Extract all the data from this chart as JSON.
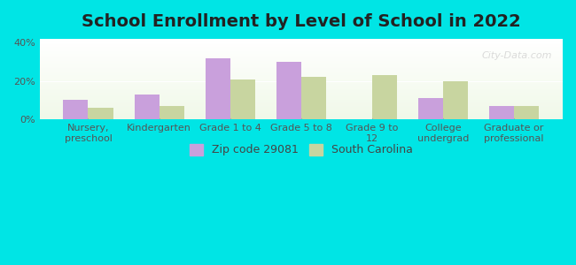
{
  "title": "School Enrollment by Level of School in 2022",
  "categories": [
    "Nursery,\npreschool",
    "Kindergarten",
    "Grade 1 to 4",
    "Grade 5 to 8",
    "Grade 9 to\n12",
    "College\nundergrad",
    "Graduate or\nprofessional"
  ],
  "zip_values": [
    10,
    13,
    32,
    30,
    0,
    11,
    7
  ],
  "sc_values": [
    6,
    7,
    21,
    22,
    23,
    20,
    7
  ],
  "zip_color": "#c9a0dc",
  "sc_color": "#c8d5a0",
  "background_color": "#00e5e5",
  "plot_bg_start": "#f0f8e8",
  "plot_bg_end": "#ffffff",
  "ylim": [
    0,
    42
  ],
  "yticks": [
    0,
    20,
    40
  ],
  "ytick_labels": [
    "0%",
    "20%",
    "40%"
  ],
  "bar_width": 0.35,
  "legend_zip": "Zip code 29081",
  "legend_sc": "South Carolina",
  "watermark": "City-Data.com",
  "title_fontsize": 14,
  "tick_fontsize": 8
}
